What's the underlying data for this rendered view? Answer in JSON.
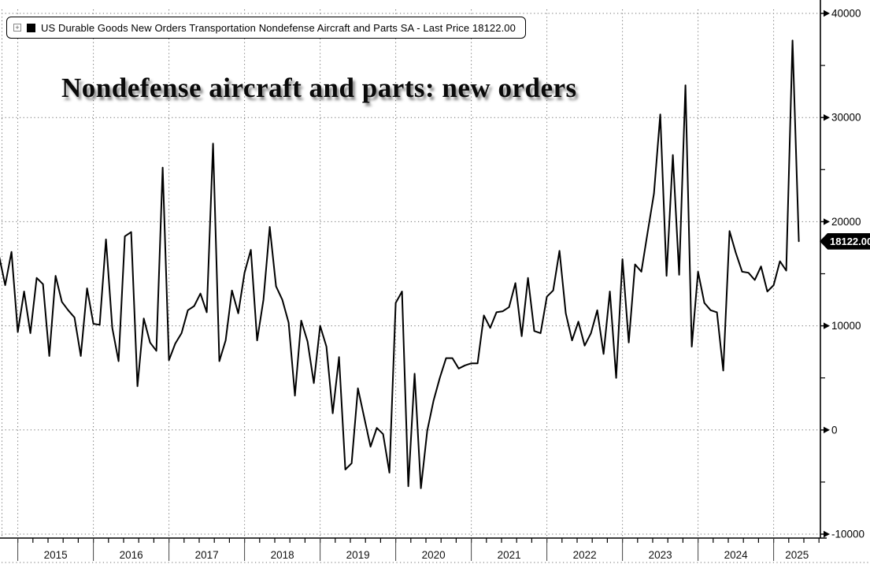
{
  "legend": {
    "expand_icon": "+",
    "swatch_color": "#000000",
    "label": "US Durable Goods New Orders Transportation Nondefense Aircraft and Parts SA - Last Price 18122.00"
  },
  "title": "Nondefense aircraft and parts: new orders",
  "last_price": {
    "text": "18122.00",
    "value": 18122,
    "bg": "#000000",
    "fg": "#ffffff"
  },
  "chart_data": {
    "type": "line",
    "title": "Nondefense aircraft and parts: new orders",
    "series_name": "US Durable Goods New Orders Transportation Nondefense Aircraft and Parts SA",
    "frequency": "monthly",
    "start_month": "2014-10",
    "end_month": "2025-05",
    "last_value": 18122,
    "ylim": [
      -10000,
      40000
    ],
    "y_major_ticks": [
      40000,
      30000,
      20000,
      10000,
      0,
      -10000
    ],
    "y_major_tick_labels": [
      "40000",
      "30000",
      "20000",
      "10000",
      "0",
      "-10000"
    ],
    "y_minor_ticks": [
      35000,
      25000,
      15000,
      5000,
      -5000
    ],
    "x_year_labels": [
      "2015",
      "2016",
      "2017",
      "2018",
      "2019",
      "2020",
      "2021",
      "2022",
      "2023",
      "2024",
      "2025"
    ],
    "grid": "dotted",
    "legend_position": "top-left",
    "line_color": "#000000",
    "grid_color": "#6e6e6e",
    "axis_color": "#000000",
    "values": [
      16800,
      13900,
      17100,
      9400,
      13300,
      9300,
      14600,
      14000,
      7100,
      14800,
      12300,
      11500,
      10800,
      7100,
      13600,
      10200,
      10100,
      18300,
      9800,
      6600,
      18600,
      19000,
      4200,
      10700,
      8400,
      7600,
      25200,
      6700,
      8300,
      9300,
      11500,
      11900,
      13100,
      11300,
      27500,
      6600,
      8600,
      13400,
      11200,
      15100,
      17300,
      8600,
      12500,
      19500,
      13800,
      12500,
      10300,
      3300,
      10500,
      8500,
      4500,
      10000,
      8000,
      1600,
      7000,
      -3800,
      -3200,
      4000,
      1200,
      -1600,
      200,
      -400,
      -4100,
      12200,
      13300,
      -5400,
      5400,
      -5600,
      -100,
      2800,
      5000,
      6900,
      6900,
      5900,
      6200,
      6400,
      6400,
      11000,
      9800,
      11300,
      11400,
      11800,
      14100,
      9000,
      14600,
      9500,
      9300,
      12800,
      13400,
      17200,
      11200,
      8600,
      10400,
      8100,
      9300,
      11500,
      7300,
      13300,
      5000,
      16400,
      8400,
      15900,
      15200,
      19000,
      22700,
      30300,
      14800,
      26400,
      14900,
      33100,
      8000,
      15200,
      12200,
      11500,
      11300,
      5700,
      19100,
      17000,
      15200,
      15100,
      14400,
      15700,
      13300,
      13900,
      16200,
      15300,
      37400,
      18122
    ]
  }
}
